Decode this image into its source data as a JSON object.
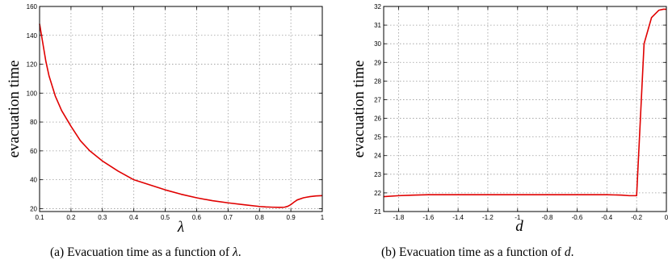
{
  "chart_data": [
    {
      "type": "line",
      "title": "",
      "xlabel": "λ",
      "ylabel": "evacuation time",
      "caption": "(a)  Evacuation time as a function of λ.",
      "caption_prefix": "(a)  Evacuation time as a function of ",
      "caption_var": "λ",
      "caption_suffix": ".",
      "xlim": [
        0.1,
        1.0
      ],
      "ylim": [
        18,
        160
      ],
      "xticks": [
        0.1,
        0.2,
        0.3,
        0.4,
        0.5,
        0.6,
        0.7,
        0.8,
        0.9,
        1
      ],
      "xtick_labels": [
        "0.1",
        "0.2",
        "0.3",
        "0.4",
        "0.5",
        "0.6",
        "0.7",
        "0.8",
        "0.9",
        "1"
      ],
      "yticks": [
        20,
        40,
        60,
        80,
        100,
        120,
        140,
        160
      ],
      "ytick_labels": [
        "20",
        "40",
        "60",
        "80",
        "100",
        "120",
        "140",
        "160"
      ],
      "grid": true,
      "series_color": "#e00000",
      "series": [
        {
          "x": [
            0.1,
            0.11,
            0.12,
            0.13,
            0.15,
            0.17,
            0.2,
            0.23,
            0.26,
            0.3,
            0.35,
            0.4,
            0.45,
            0.5,
            0.55,
            0.6,
            0.65,
            0.7,
            0.75,
            0.8,
            0.82,
            0.84,
            0.86,
            0.87,
            0.88,
            0.89,
            0.9,
            0.91,
            0.92,
            0.94,
            0.96,
            0.98,
            1.0
          ],
          "y": [
            148,
            135,
            122,
            112,
            98,
            88,
            77,
            67,
            60,
            53,
            46,
            40,
            36.5,
            33,
            30,
            27.5,
            25.5,
            24,
            22.7,
            21.5,
            21.2,
            21,
            20.9,
            20.9,
            21,
            21.6,
            22.8,
            24.5,
            26,
            27.5,
            28.3,
            28.8,
            29
          ]
        }
      ]
    },
    {
      "type": "line",
      "title": "",
      "xlabel": "d",
      "ylabel": "evacuation time",
      "caption": "(b)  Evacuation time as a function of d.",
      "caption_prefix": "(b)  Evacuation time as a function of ",
      "caption_var": "d",
      "caption_suffix": ".",
      "xlim": [
        -1.9,
        0
      ],
      "ylim": [
        21,
        32
      ],
      "xticks": [
        -1.8,
        -1.6,
        -1.4,
        -1.2,
        -1,
        -0.8,
        -0.6,
        -0.4,
        -0.2,
        0
      ],
      "xtick_labels": [
        "-1.8",
        "-1.6",
        "-1.4",
        "-1.2",
        "-1",
        "-0.8",
        "-0.6",
        "-0.4",
        "-0.2",
        "0"
      ],
      "yticks": [
        21,
        22,
        23,
        24,
        25,
        26,
        27,
        28,
        29,
        30,
        31,
        32
      ],
      "ytick_labels": [
        "21",
        "22",
        "23",
        "24",
        "25",
        "26",
        "27",
        "28",
        "29",
        "30",
        "31",
        "32"
      ],
      "grid": true,
      "series_color": "#e00000",
      "series": [
        {
          "x": [
            -1.9,
            -1.8,
            -1.7,
            -1.6,
            -1.4,
            -1.2,
            -1.0,
            -0.8,
            -0.6,
            -0.4,
            -0.3,
            -0.25,
            -0.2,
            -0.15,
            -0.1,
            -0.05,
            -0.02,
            0
          ],
          "y": [
            21.8,
            21.85,
            21.88,
            21.9,
            21.9,
            21.9,
            21.9,
            21.9,
            21.9,
            21.9,
            21.88,
            21.85,
            21.85,
            30.0,
            31.4,
            31.8,
            31.85,
            31.85
          ]
        }
      ]
    }
  ]
}
